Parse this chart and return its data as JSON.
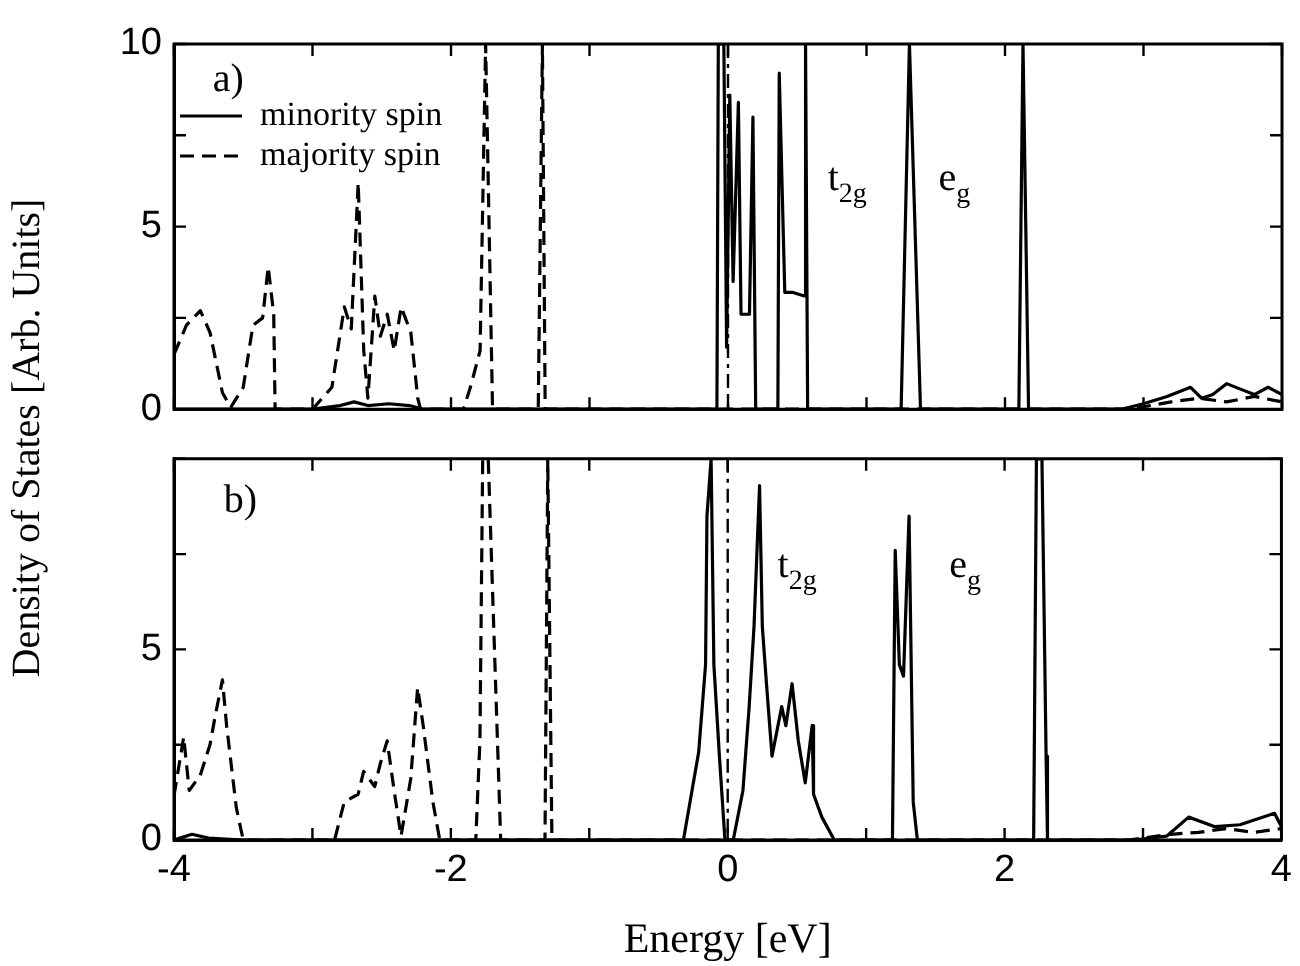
{
  "chart_data": [
    {
      "type": "line",
      "ylabel": "Density of States [Arb. Units]",
      "xlim": [
        -4,
        4
      ],
      "ylim": [
        0,
        10
      ],
      "xticks": [
        -4,
        {
          "value": -3,
          "label": null
        },
        -2,
        {
          "value": -1,
          "label": null
        },
        0,
        {
          "value": 1,
          "label": null
        },
        2,
        {
          "value": 3,
          "label": null
        },
        4
      ],
      "yticks": [
        0,
        {
          "value": 2.5,
          "label": null
        },
        5,
        {
          "value": 7.5,
          "label": null
        },
        10
      ],
      "tick_labels": "y",
      "legend": "top left",
      "marker": "none",
      "ref_lines": [
        {
          "axis": "x",
          "value": 0,
          "line_style": "dashed",
          "color": "#000000"
        }
      ],
      "annotations": [
        "a)",
        "t$_{2g}$",
        "e$_{g}$"
      ],
      "series": [
        {
          "name": "minority spin",
          "color": "#000000",
          "line_style": "solid",
          "x": [
            -4,
            -3.0,
            -2.8,
            -2.7,
            -2.6,
            -2.45,
            -2.3,
            -2.2,
            -0.08,
            -0.07,
            -0.03,
            -0.01,
            0.013,
            0.037,
            0.075,
            0.094,
            0.155,
            0.18,
            0.2,
            0.36,
            0.37,
            0.41,
            0.465,
            0.55,
            0.56,
            0.575,
            1.25,
            1.31,
            1.39,
            2.1,
            2.13,
            2.17,
            2.84,
            3.0,
            3.17,
            3.34,
            3.42,
            3.5,
            3.6,
            3.7,
            3.8,
            3.9,
            4
          ],
          "values": [
            0,
            0,
            0.1,
            0.2,
            0.1,
            0.15,
            0.1,
            0,
            0,
            10,
            10,
            1.7,
            8.6,
            3.5,
            8.4,
            2.6,
            2.6,
            8.0,
            0,
            0,
            9.2,
            3.2,
            3.2,
            3.1,
            10,
            0,
            0,
            10,
            0,
            0,
            10,
            0,
            0,
            0.15,
            0.35,
            0.6,
            0.3,
            0.4,
            0.7,
            0.55,
            0.4,
            0.6,
            0.4
          ]
        },
        {
          "name": "majority spin",
          "color": "#000000",
          "line_style": "dashed",
          "x": [
            -4,
            -3.91,
            -3.81,
            -3.74,
            -3.65,
            -3.59,
            -3.5,
            -3.43,
            -3.36,
            -3.32,
            -3.28,
            -3.27,
            -3.0,
            -2.86,
            -2.77,
            -2.72,
            -2.67,
            -2.63,
            -2.6,
            -2.55,
            -2.51,
            -2.46,
            -2.41,
            -2.36,
            -2.29,
            -2.24,
            -2.22,
            -1.91,
            -1.86,
            -1.79,
            -1.75,
            -1.7,
            -1.37,
            -1.34,
            -1.32,
            2.9,
            3.2,
            3.4,
            3.6,
            3.8,
            4
          ],
          "values": [
            1.5,
            2.3,
            2.7,
            2.1,
            0.45,
            0.05,
            0.6,
            2.3,
            2.5,
            3.9,
            2.6,
            0,
            0,
            0.6,
            2.8,
            2.2,
            6.2,
            1.6,
            0.3,
            3.1,
            2.0,
            2.6,
            1.6,
            2.8,
            2.1,
            0.3,
            0,
            0,
            0.6,
            1.6,
            10,
            0,
            0,
            10,
            0,
            0,
            0.2,
            0.3,
            0.2,
            0.35,
            0.2
          ]
        }
      ]
    },
    {
      "type": "line",
      "xlabel": "Energy [eV]",
      "xlim": [
        -4,
        4
      ],
      "ylim": [
        0,
        10
      ],
      "xticks": [
        -4,
        {
          "value": -3,
          "label": null
        },
        -2,
        {
          "value": -1,
          "label": null
        },
        0,
        {
          "value": 1,
          "label": null
        },
        2,
        {
          "value": 3,
          "label": null
        },
        4
      ],
      "yticks": [
        0,
        {
          "value": 2.5,
          "label": null
        },
        5,
        {
          "value": 7.5,
          "label": null
        },
        {
          "value": 10,
          "label": null
        }
      ],
      "marker": "none",
      "ref_lines": [
        {
          "axis": "x",
          "value": 0,
          "line_style": "dashed",
          "color": "#000000"
        }
      ],
      "annotations": [
        "b)",
        "t$_{2g}$",
        "e$_{g}$"
      ],
      "series": [
        {
          "color": "#000000",
          "line_style": "solid",
          "x": [
            -4,
            -3.87,
            -3.75,
            -3.5,
            -0.32,
            -0.21,
            -0.16,
            -0.15,
            -0.12,
            -0.1,
            -0.06,
            -0.02,
            0.04,
            0.11,
            0.155,
            0.19,
            0.23,
            0.25,
            0.28,
            0.32,
            0.39,
            0.42,
            0.465,
            0.51,
            0.56,
            0.61,
            0.62,
            0.68,
            0.77,
            1.19,
            1.21,
            1.24,
            1.27,
            1.31,
            1.34,
            1.37,
            2.21,
            2.23,
            2.27,
            2.3,
            2.31,
            2.94,
            3.17,
            3.33,
            3.52,
            3.7,
            3.95,
            4
          ],
          "values": [
            0,
            0.15,
            0.05,
            0,
            0,
            2.3,
            4.6,
            8.5,
            10,
            4.6,
            2.2,
            0,
            0,
            1.3,
            3.5,
            5.6,
            9.3,
            5.6,
            4.1,
            2.2,
            3.5,
            3.0,
            4.1,
            2.6,
            1.5,
            3.0,
            1.2,
            0.6,
            0,
            0,
            7.6,
            4.6,
            4.3,
            8.5,
            1.0,
            0,
            0,
            10,
            10,
            2.2,
            0,
            0,
            0.1,
            0.6,
            0.35,
            0.4,
            0.7,
            0.35
          ]
        },
        {
          "color": "#000000",
          "line_style": "dashed",
          "x": [
            -4,
            -3.93,
            -3.89,
            -3.81,
            -3.74,
            -3.7,
            -3.65,
            -3.62,
            -3.55,
            -3.5,
            -2.84,
            -2.77,
            -2.67,
            -2.63,
            -2.55,
            -2.51,
            -2.46,
            -2.41,
            -2.36,
            -2.29,
            -2.24,
            -2.2,
            -2.13,
            -2.08,
            -1.82,
            -1.79,
            -1.77,
            -1.73,
            -1.64,
            -1.32,
            -1.3,
            -1.27,
            2.9,
            3.2,
            3.4,
            3.6,
            3.8,
            4
          ],
          "values": [
            1.16,
            2.7,
            1.3,
            1.7,
            2.5,
            3.3,
            4.2,
            3.0,
            0.85,
            0,
            0,
            1.0,
            1.2,
            1.8,
            1.4,
            2.0,
            2.6,
            1.3,
            0.1,
            1.6,
            4.0,
            3.0,
            1.0,
            0,
            0,
            2.6,
            10,
            10,
            0,
            0,
            10,
            0,
            0,
            0.15,
            0.2,
            0.3,
            0.2,
            0.3
          ]
        }
      ]
    }
  ]
}
